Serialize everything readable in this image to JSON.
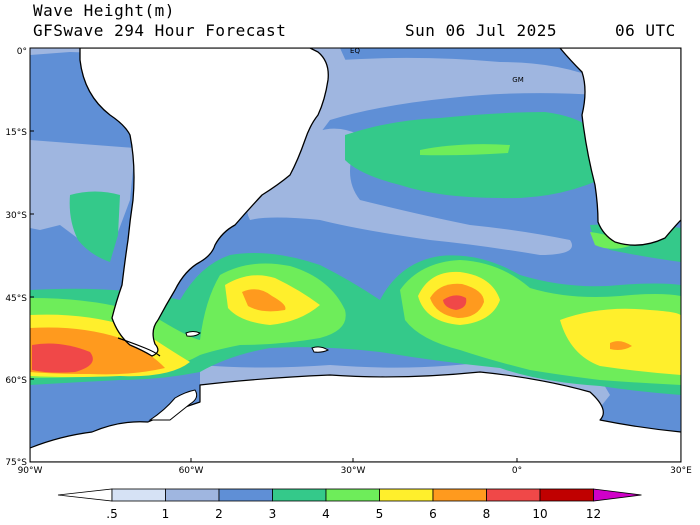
{
  "header": {
    "title": "Wave Height(m)",
    "model": "GFSwave 294 Hour Forecast",
    "date": "Sun 06 Jul 2025",
    "time": "06 UTC"
  },
  "map": {
    "lat_ticks": [
      "0°",
      "15°S",
      "30°S",
      "45°S",
      "60°S",
      "75°S"
    ],
    "lon_ticks": [
      "90°W",
      "60°W",
      "30°W",
      "0°",
      "30°E"
    ],
    "markers": [
      "EQ",
      "GM"
    ],
    "land_color": "#ffffff",
    "coast_color": "#000000"
  },
  "colorbar": {
    "labels": [
      ".5",
      "1",
      "2",
      "3",
      "4",
      "5",
      "6",
      "8",
      "10",
      "12"
    ],
    "colors": [
      "#ffffff",
      "#d6e2f5",
      "#9fb6e0",
      "#5f8fd6",
      "#34c98a",
      "#6eed5a",
      "#ffef2c",
      "#ff9a1e",
      "#f04848",
      "#c00000",
      "#d000c8"
    ]
  }
}
